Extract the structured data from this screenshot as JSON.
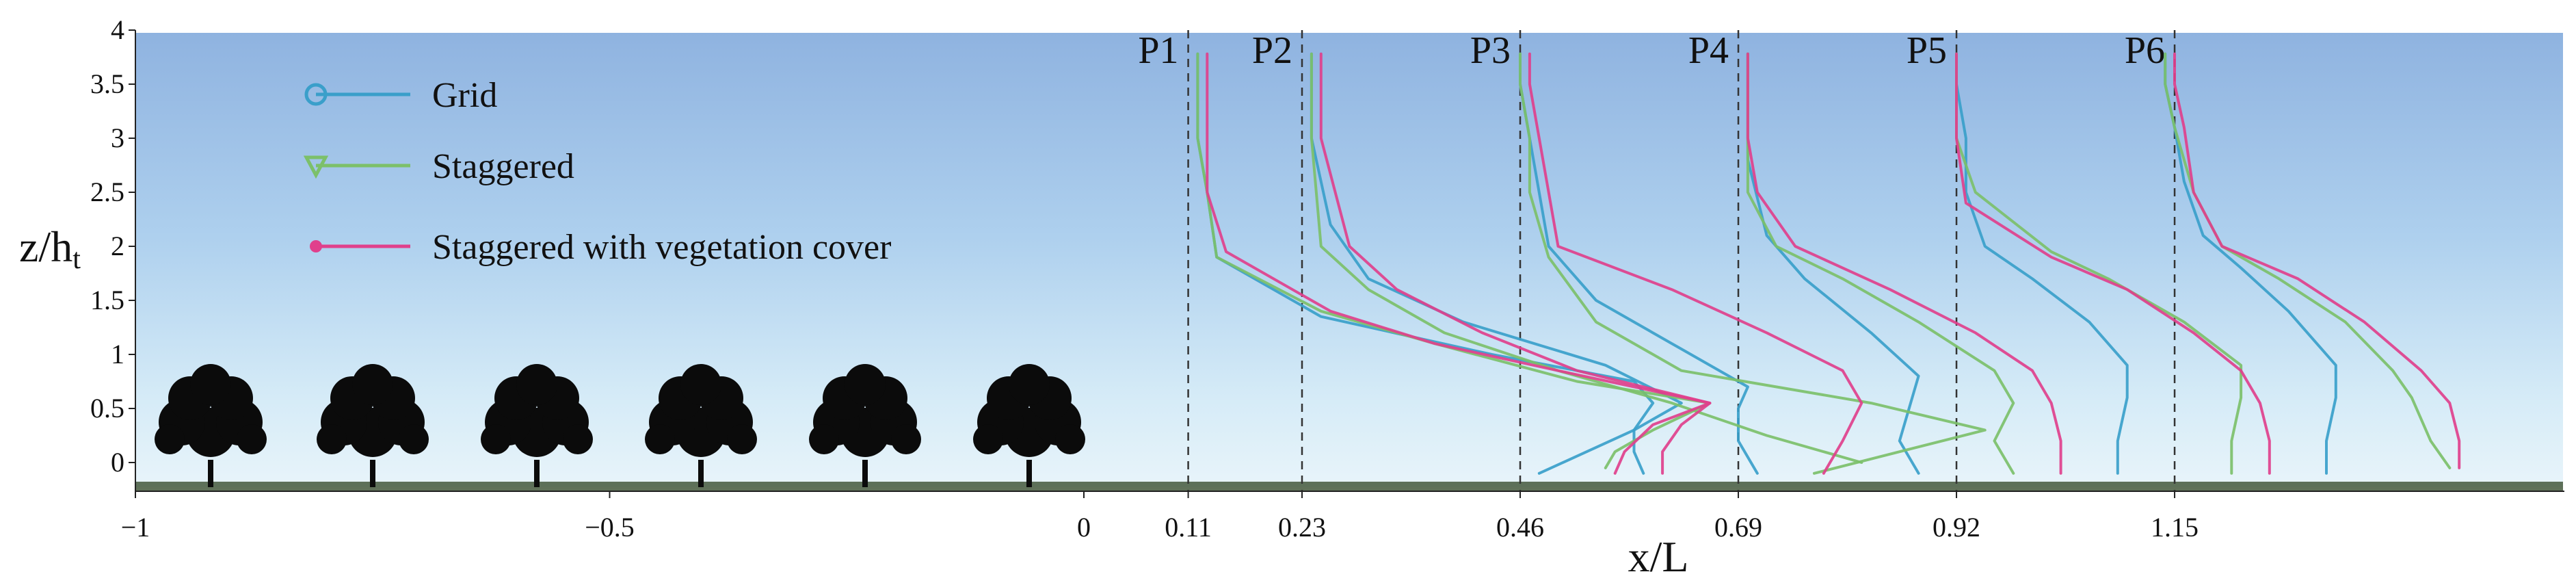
{
  "chart_data": {
    "type": "line",
    "xlabel": "x/L",
    "ylabel_main": "z/h",
    "ylabel_sub": "t",
    "xlim": [
      -1,
      1.35
    ],
    "ylim": [
      -0.2,
      4
    ],
    "x_ticks": [
      {
        "value": -1,
        "label": "−1"
      },
      {
        "value": -0.5,
        "label": "−0.5"
      },
      {
        "value": 0,
        "label": "0"
      },
      {
        "value": 0.11,
        "label": "0.11"
      },
      {
        "value": 0.23,
        "label": "0.23"
      },
      {
        "value": 0.46,
        "label": "0.46"
      },
      {
        "value": 0.69,
        "label": "0.69"
      },
      {
        "value": 0.92,
        "label": "0.92"
      },
      {
        "value": 1.15,
        "label": "1.15"
      }
    ],
    "y_ticks": [
      {
        "value": 0,
        "label": "0"
      },
      {
        "value": 0.5,
        "label": "0.5"
      },
      {
        "value": 1,
        "label": "1"
      },
      {
        "value": 1.5,
        "label": "1.5"
      },
      {
        "value": 2,
        "label": "2"
      },
      {
        "value": 2.5,
        "label": "2.5"
      },
      {
        "value": 3,
        "label": "3"
      },
      {
        "value": 3.5,
        "label": "3.5"
      },
      {
        "value": 4,
        "label": "4"
      }
    ],
    "probes": [
      {
        "name": "P1",
        "x": 0.11
      },
      {
        "name": "P2",
        "x": 0.23
      },
      {
        "name": "P3",
        "x": 0.46
      },
      {
        "name": "P4",
        "x": 0.69
      },
      {
        "name": "P5",
        "x": 0.92
      },
      {
        "name": "P6",
        "x": 1.15
      }
    ],
    "legend": {
      "placement": "top-left"
    },
    "series": [
      {
        "name": "Grid",
        "color": "#3a9fca",
        "marker": "circle",
        "profiles": [
          [
            [
              0.59,
              -0.1
            ],
            [
              0.58,
              0.1
            ],
            [
              0.58,
              0.3
            ],
            [
              0.6,
              0.55
            ],
            [
              0.58,
              0.75
            ],
            [
              0.43,
              1.0
            ],
            [
              0.25,
              1.35
            ],
            [
              0.14,
              1.9
            ],
            [
              0.13,
              2.5
            ],
            [
              0.12,
              3.0
            ],
            [
              0.12,
              3.5
            ],
            [
              0.12,
              3.78
            ]
          ],
          [
            [
              0.48,
              -0.1
            ],
            [
              0.58,
              0.3
            ],
            [
              0.63,
              0.55
            ],
            [
              0.55,
              0.9
            ],
            [
              0.4,
              1.3
            ],
            [
              0.3,
              1.7
            ],
            [
              0.26,
              2.2
            ],
            [
              0.24,
              3.0
            ],
            [
              0.24,
              3.5
            ],
            [
              0.24,
              3.78
            ]
          ],
          [
            [
              0.71,
              -0.1
            ],
            [
              0.69,
              0.2
            ],
            [
              0.69,
              0.5
            ],
            [
              0.7,
              0.7
            ],
            [
              0.62,
              1.1
            ],
            [
              0.54,
              1.5
            ],
            [
              0.49,
              2.0
            ],
            [
              0.47,
              3.0
            ],
            [
              0.46,
              3.5
            ],
            [
              0.46,
              3.78
            ]
          ],
          [
            [
              0.88,
              -0.1
            ],
            [
              0.86,
              0.2
            ],
            [
              0.87,
              0.5
            ],
            [
              0.88,
              0.8
            ],
            [
              0.83,
              1.2
            ],
            [
              0.76,
              1.7
            ],
            [
              0.72,
              2.1
            ],
            [
              0.7,
              2.8
            ],
            [
              0.7,
              3.5
            ],
            [
              0.7,
              3.78
            ]
          ],
          [
            [
              1.09,
              -0.1
            ],
            [
              1.09,
              0.2
            ],
            [
              1.1,
              0.6
            ],
            [
              1.1,
              0.9
            ],
            [
              1.06,
              1.3
            ],
            [
              1.0,
              1.7
            ],
            [
              0.95,
              2.0
            ],
            [
              0.93,
              2.5
            ],
            [
              0.93,
              3.0
            ],
            [
              0.92,
              3.5
            ],
            [
              0.92,
              3.78
            ]
          ],
          [
            [
              1.31,
              -0.1
            ],
            [
              1.31,
              0.2
            ],
            [
              1.32,
              0.6
            ],
            [
              1.32,
              0.9
            ],
            [
              1.27,
              1.4
            ],
            [
              1.22,
              1.8
            ],
            [
              1.18,
              2.1
            ],
            [
              1.16,
              2.6
            ],
            [
              1.15,
              3.1
            ],
            [
              1.14,
              3.5
            ],
            [
              1.14,
              3.78
            ]
          ]
        ]
      },
      {
        "name": "Staggered",
        "color": "#7cc06a",
        "marker": "triangle",
        "profiles": [
          [
            [
              0.55,
              -0.05
            ],
            [
              0.56,
              0.1
            ],
            [
              0.6,
              0.3
            ],
            [
              0.66,
              0.55
            ],
            [
              0.52,
              0.75
            ],
            [
              0.37,
              1.1
            ],
            [
              0.25,
              1.4
            ],
            [
              0.14,
              1.9
            ],
            [
              0.13,
              2.5
            ],
            [
              0.12,
              3.0
            ],
            [
              0.12,
              3.5
            ],
            [
              0.12,
              3.78
            ]
          ],
          [
            [
              0.82,
              0.0
            ],
            [
              0.72,
              0.25
            ],
            [
              0.62,
              0.55
            ],
            [
              0.5,
              0.85
            ],
            [
              0.38,
              1.2
            ],
            [
              0.3,
              1.6
            ],
            [
              0.25,
              2.0
            ],
            [
              0.24,
              3.0
            ],
            [
              0.24,
              3.5
            ],
            [
              0.24,
              3.78
            ]
          ],
          [
            [
              0.77,
              -0.1
            ],
            [
              0.95,
              0.3
            ],
            [
              0.83,
              0.55
            ],
            [
              0.63,
              0.85
            ],
            [
              0.54,
              1.3
            ],
            [
              0.49,
              1.9
            ],
            [
              0.47,
              2.5
            ],
            [
              0.47,
              3.0
            ],
            [
              0.46,
              3.5
            ],
            [
              0.46,
              3.78
            ]
          ],
          [
            [
              0.98,
              -0.1
            ],
            [
              0.96,
              0.2
            ],
            [
              0.98,
              0.55
            ],
            [
              0.96,
              0.85
            ],
            [
              0.88,
              1.3
            ],
            [
              0.8,
              1.7
            ],
            [
              0.73,
              2.0
            ],
            [
              0.7,
              2.5
            ],
            [
              0.7,
              3.0
            ],
            [
              0.7,
              3.5
            ],
            [
              0.7,
              3.78
            ]
          ],
          [
            [
              1.21,
              -0.1
            ],
            [
              1.21,
              0.2
            ],
            [
              1.22,
              0.6
            ],
            [
              1.22,
              0.9
            ],
            [
              1.16,
              1.3
            ],
            [
              1.08,
              1.7
            ],
            [
              1.02,
              1.95
            ],
            [
              0.94,
              2.5
            ],
            [
              0.92,
              3.0
            ],
            [
              0.92,
              3.5
            ],
            [
              0.92,
              3.78
            ]
          ],
          [
            [
              1.44,
              -0.05
            ],
            [
              1.42,
              0.2
            ],
            [
              1.4,
              0.6
            ],
            [
              1.38,
              0.85
            ],
            [
              1.33,
              1.3
            ],
            [
              1.26,
              1.7
            ],
            [
              1.2,
              2.0
            ],
            [
              1.17,
              2.5
            ],
            [
              1.15,
              3.1
            ],
            [
              1.14,
              3.5
            ],
            [
              1.14,
              3.78
            ]
          ]
        ]
      },
      {
        "name": "Staggered with vegetation cover",
        "color": "#e0408c",
        "marker": "asterisk",
        "profiles": [
          [
            [
              0.61,
              -0.1
            ],
            [
              0.61,
              0.1
            ],
            [
              0.63,
              0.35
            ],
            [
              0.66,
              0.55
            ],
            [
              0.5,
              0.85
            ],
            [
              0.37,
              1.1
            ],
            [
              0.26,
              1.4
            ],
            [
              0.15,
              1.95
            ],
            [
              0.13,
              2.5
            ],
            [
              0.13,
              3.0
            ],
            [
              0.13,
              3.5
            ],
            [
              0.13,
              3.78
            ]
          ],
          [
            [
              0.56,
              -0.1
            ],
            [
              0.57,
              0.1
            ],
            [
              0.6,
              0.35
            ],
            [
              0.66,
              0.55
            ],
            [
              0.52,
              0.85
            ],
            [
              0.42,
              1.2
            ],
            [
              0.33,
              1.6
            ],
            [
              0.28,
              2.0
            ],
            [
              0.25,
              3.0
            ],
            [
              0.25,
              3.5
            ],
            [
              0.25,
              3.78
            ]
          ],
          [
            [
              0.78,
              -0.1
            ],
            [
              0.8,
              0.2
            ],
            [
              0.82,
              0.55
            ],
            [
              0.8,
              0.85
            ],
            [
              0.72,
              1.2
            ],
            [
              0.62,
              1.6
            ],
            [
              0.5,
              2.0
            ],
            [
              0.48,
              3.0
            ],
            [
              0.47,
              3.5
            ],
            [
              0.47,
              3.78
            ]
          ],
          [
            [
              1.03,
              -0.1
            ],
            [
              1.03,
              0.2
            ],
            [
              1.02,
              0.55
            ],
            [
              1.0,
              0.85
            ],
            [
              0.94,
              1.2
            ],
            [
              0.85,
              1.6
            ],
            [
              0.75,
              2.0
            ],
            [
              0.71,
              2.5
            ],
            [
              0.7,
              3.0
            ],
            [
              0.7,
              3.5
            ],
            [
              0.7,
              3.78
            ]
          ],
          [
            [
              1.25,
              -0.1
            ],
            [
              1.25,
              0.2
            ],
            [
              1.24,
              0.55
            ],
            [
              1.22,
              0.85
            ],
            [
              1.17,
              1.2
            ],
            [
              1.1,
              1.6
            ],
            [
              1.02,
              1.9
            ],
            [
              0.93,
              2.4
            ],
            [
              0.92,
              3.0
            ],
            [
              0.92,
              3.5
            ],
            [
              0.92,
              3.78
            ]
          ],
          [
            [
              1.45,
              -0.05
            ],
            [
              1.45,
              0.2
            ],
            [
              1.44,
              0.55
            ],
            [
              1.41,
              0.85
            ],
            [
              1.35,
              1.3
            ],
            [
              1.28,
              1.7
            ],
            [
              1.2,
              2.0
            ],
            [
              1.17,
              2.5
            ],
            [
              1.16,
              3.1
            ],
            [
              1.15,
              3.5
            ],
            [
              1.15,
              3.78
            ]
          ]
        ]
      }
    ]
  }
}
